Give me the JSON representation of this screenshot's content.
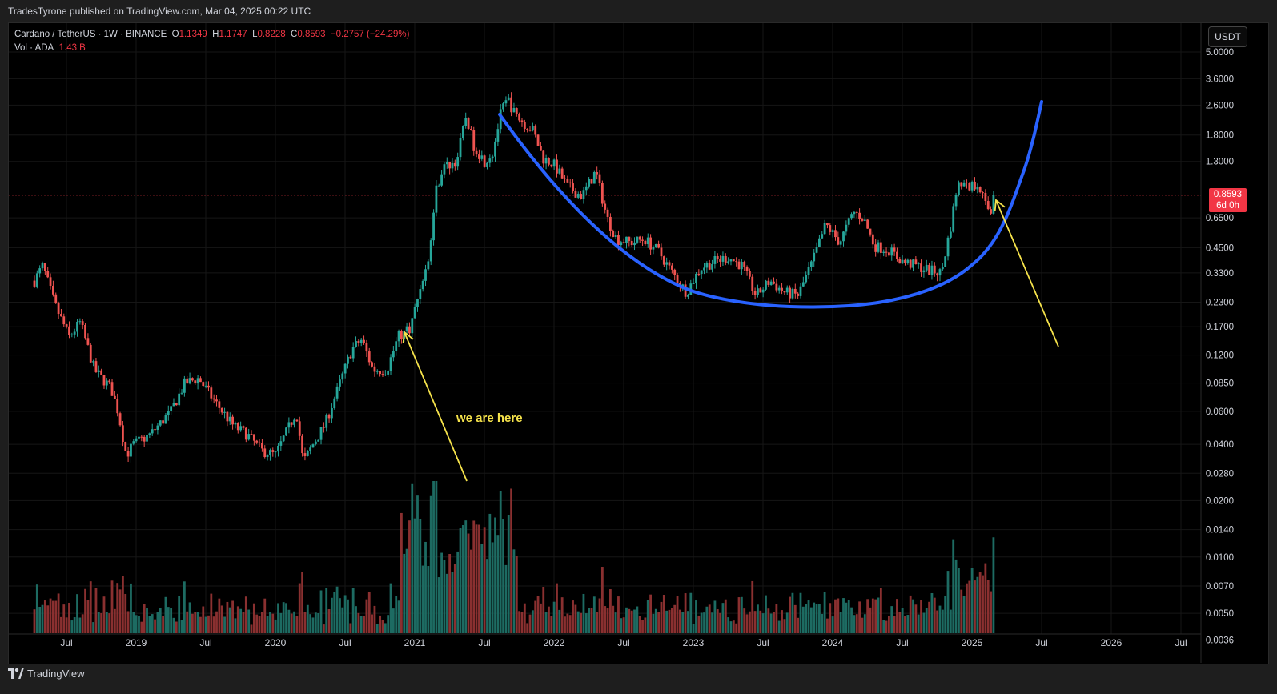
{
  "header": {
    "published_line": "TradesTyrone published on TradingView.com, Mar 04, 2025 00:22 UTC"
  },
  "legend": {
    "symbol": "Cardano / TetherUS · 1W · BINANCE",
    "open_label": "O",
    "open": "1.1349",
    "high_label": "H",
    "high": "1.1747",
    "low_label": "L",
    "low": "0.8228",
    "close_label": "C",
    "close": "0.8593",
    "change": "−0.2757 (−24.29%)",
    "vol_label": "Vol · ADA",
    "vol_value": "1.43 B"
  },
  "currency": "USDT",
  "price_tag": {
    "price": "0.8593",
    "countdown": "6d 0h"
  },
  "annotation": {
    "text": "we are here"
  },
  "footer": {
    "brand": "TradingView"
  },
  "colors": {
    "up": "#26a69a",
    "down": "#ef5350",
    "cup": "#2962ff",
    "arrow": "#f6e34b",
    "price_line": "#f23645"
  },
  "chart_data": {
    "type": "candlestick",
    "title": "Cardano / TetherUS · 1W · BINANCE",
    "yscale": "log",
    "ylim": [
      0.0034,
      6.2
    ],
    "y_ticks": [
      "5.0000",
      "3.6000",
      "2.6000",
      "1.8000",
      "1.3000",
      "0.6500",
      "0.4500",
      "0.3300",
      "0.2300",
      "0.1700",
      "0.1200",
      "0.0850",
      "0.0600",
      "0.0400",
      "0.0280",
      "0.0200",
      "0.0140",
      "0.0100",
      "0.0070",
      "0.0050",
      "0.0036"
    ],
    "x_ticks": [
      {
        "label": "Jul",
        "t": 2018.5
      },
      {
        "label": "2019",
        "t": 2019.0
      },
      {
        "label": "Jul",
        "t": 2019.5
      },
      {
        "label": "2020",
        "t": 2020.0
      },
      {
        "label": "Jul",
        "t": 2020.5
      },
      {
        "label": "2021",
        "t": 2021.0
      },
      {
        "label": "Jul",
        "t": 2021.5
      },
      {
        "label": "2022",
        "t": 2022.0
      },
      {
        "label": "Jul",
        "t": 2022.5
      },
      {
        "label": "2023",
        "t": 2023.0
      },
      {
        "label": "Jul",
        "t": 2023.5
      },
      {
        "label": "2024",
        "t": 2024.0
      },
      {
        "label": "Jul",
        "t": 2024.5
      },
      {
        "label": "2025",
        "t": 2025.0
      },
      {
        "label": "Jul",
        "t": 2025.5
      },
      {
        "label": "2026",
        "t": 2026.0
      },
      {
        "label": "Jul",
        "t": 2026.5
      }
    ],
    "price_path": [
      [
        2018.27,
        0.3
      ],
      [
        2018.33,
        0.36
      ],
      [
        2018.42,
        0.22
      ],
      [
        2018.52,
        0.15
      ],
      [
        2018.6,
        0.18
      ],
      [
        2018.7,
        0.1
      ],
      [
        2018.82,
        0.08
      ],
      [
        2018.87,
        0.06
      ],
      [
        2018.93,
        0.035
      ],
      [
        2018.98,
        0.04
      ],
      [
        2019.1,
        0.045
      ],
      [
        2019.25,
        0.06
      ],
      [
        2019.35,
        0.085
      ],
      [
        2019.45,
        0.09
      ],
      [
        2019.55,
        0.07
      ],
      [
        2019.7,
        0.05
      ],
      [
        2019.8,
        0.045
      ],
      [
        2019.9,
        0.037
      ],
      [
        2020.0,
        0.035
      ],
      [
        2020.1,
        0.05
      ],
      [
        2020.15,
        0.06
      ],
      [
        2020.2,
        0.032
      ],
      [
        2020.27,
        0.04
      ],
      [
        2020.35,
        0.05
      ],
      [
        2020.45,
        0.08
      ],
      [
        2020.55,
        0.13
      ],
      [
        2020.62,
        0.145
      ],
      [
        2020.7,
        0.1
      ],
      [
        2020.8,
        0.1
      ],
      [
        2020.88,
        0.15
      ],
      [
        2020.97,
        0.17
      ],
      [
        2021.05,
        0.3
      ],
      [
        2021.1,
        0.38
      ],
      [
        2021.15,
        0.9
      ],
      [
        2021.2,
        1.2
      ],
      [
        2021.3,
        1.3
      ],
      [
        2021.37,
        2.3
      ],
      [
        2021.42,
        1.6
      ],
      [
        2021.5,
        1.3
      ],
      [
        2021.56,
        1.45
      ],
      [
        2021.62,
        2.4
      ],
      [
        2021.67,
        2.8
      ],
      [
        2021.72,
        2.3
      ],
      [
        2021.78,
        2.1
      ],
      [
        2021.85,
        1.9
      ],
      [
        2021.92,
        1.35
      ],
      [
        2022.0,
        1.25
      ],
      [
        2022.1,
        0.95
      ],
      [
        2022.2,
        0.85
      ],
      [
        2022.3,
        1.15
      ],
      [
        2022.38,
        0.65
      ],
      [
        2022.45,
        0.5
      ],
      [
        2022.55,
        0.48
      ],
      [
        2022.65,
        0.5
      ],
      [
        2022.75,
        0.43
      ],
      [
        2022.85,
        0.33
      ],
      [
        2022.95,
        0.26
      ],
      [
        2023.05,
        0.35
      ],
      [
        2023.15,
        0.38
      ],
      [
        2023.25,
        0.4
      ],
      [
        2023.35,
        0.36
      ],
      [
        2023.45,
        0.25
      ],
      [
        2023.55,
        0.3
      ],
      [
        2023.65,
        0.26
      ],
      [
        2023.75,
        0.25
      ],
      [
        2023.85,
        0.37
      ],
      [
        2023.95,
        0.6
      ],
      [
        2024.05,
        0.48
      ],
      [
        2024.15,
        0.7
      ],
      [
        2024.22,
        0.65
      ],
      [
        2024.3,
        0.46
      ],
      [
        2024.4,
        0.44
      ],
      [
        2024.5,
        0.38
      ],
      [
        2024.6,
        0.36
      ],
      [
        2024.7,
        0.34
      ],
      [
        2024.78,
        0.33
      ],
      [
        2024.85,
        0.6
      ],
      [
        2024.9,
        1.05
      ],
      [
        2024.97,
        0.95
      ],
      [
        2025.05,
        1.0
      ],
      [
        2025.1,
        0.75
      ],
      [
        2025.15,
        0.68
      ],
      [
        2025.17,
        0.8593
      ]
    ]
  }
}
